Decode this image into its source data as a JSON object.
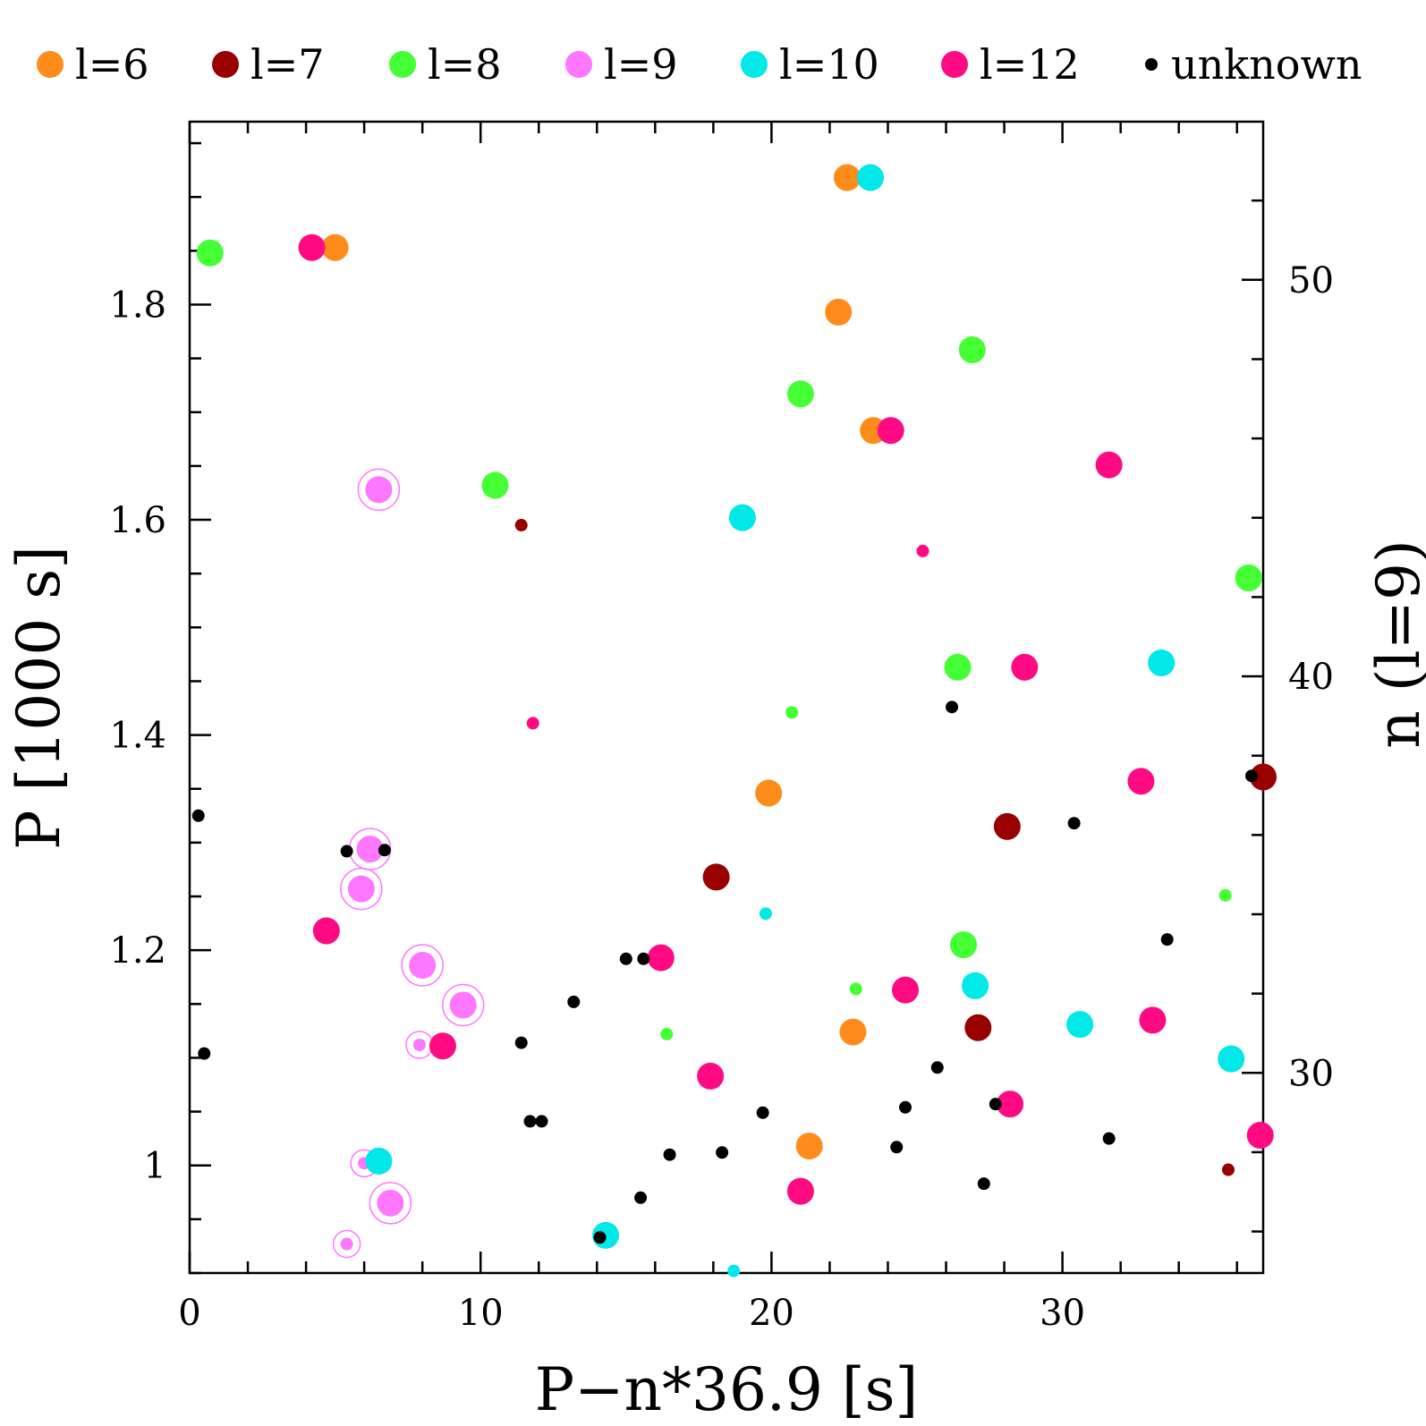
{
  "chart_data": {
    "type": "scatter",
    "title": "",
    "xlabel": "P−n*36.9 [s]",
    "ylabel": "P [1000 s]",
    "y2label": "n (l=9)",
    "xlim": [
      0,
      36.9
    ],
    "ylim": [
      0.9,
      1.97
    ],
    "x_ticks": [
      0,
      10,
      20,
      30
    ],
    "y_ticks": [
      1,
      1.2,
      1.4,
      1.6,
      1.8
    ],
    "y_tick_labels": [
      "1",
      "1.2",
      "1.4",
      "1.6",
      "1.8"
    ],
    "y2_ticks": [
      30,
      40,
      50
    ],
    "grid": false,
    "legend_position": "top",
    "legend": [
      {
        "label": "l=6",
        "color": "#FF8C1A"
      },
      {
        "label": "l=7",
        "color": "#990000"
      },
      {
        "label": "l=8",
        "color": "#44FF33"
      },
      {
        "label": "l=9",
        "color": "#FF77FF"
      },
      {
        "label": "l=10",
        "color": "#00E8E8"
      },
      {
        "label": "l=12",
        "color": "#FF0A82"
      },
      {
        "label": "unknown",
        "color": "#000000"
      }
    ],
    "series": [
      {
        "name": "l=6",
        "color": "#FF8C1A",
        "points": [
          [
            22.6,
            1.918,
            "L"
          ],
          [
            5.0,
            1.853,
            "L"
          ],
          [
            22.3,
            1.793,
            "L"
          ],
          [
            23.5,
            1.683,
            "L"
          ],
          [
            19.9,
            1.346,
            "L"
          ],
          [
            22.8,
            1.124,
            "L"
          ],
          [
            21.3,
            1.018,
            "L"
          ]
        ]
      },
      {
        "name": "l=7",
        "color": "#990000",
        "points": [
          [
            11.4,
            1.595,
            "S"
          ],
          [
            36.9,
            1.361,
            "L"
          ],
          [
            28.1,
            1.315,
            "L"
          ],
          [
            18.1,
            1.268,
            "L"
          ],
          [
            27.1,
            1.128,
            "L"
          ],
          [
            35.7,
            0.996,
            "S"
          ]
        ]
      },
      {
        "name": "l=8",
        "color": "#44FF33",
        "points": [
          [
            0.7,
            1.848,
            "L"
          ],
          [
            26.9,
            1.758,
            "L"
          ],
          [
            21.0,
            1.717,
            "L"
          ],
          [
            10.5,
            1.632,
            "L"
          ],
          [
            36.4,
            1.546,
            "L"
          ],
          [
            26.4,
            1.463,
            "L"
          ],
          [
            20.7,
            1.421,
            "S"
          ],
          [
            35.6,
            1.251,
            "S"
          ],
          [
            26.6,
            1.205,
            "L"
          ],
          [
            22.9,
            1.164,
            "S"
          ],
          [
            16.4,
            1.122,
            "S"
          ]
        ]
      },
      {
        "name": "l=9",
        "color": "#FF77FF",
        "points": [
          [
            6.5,
            1.628,
            "LR"
          ],
          [
            6.2,
            1.294,
            "LR"
          ],
          [
            5.9,
            1.257,
            "LR"
          ],
          [
            8.0,
            1.186,
            "LR"
          ],
          [
            9.4,
            1.149,
            "LR"
          ],
          [
            7.9,
            1.112,
            "SR"
          ],
          [
            6.0,
            1.002,
            "SR"
          ],
          [
            6.9,
            0.965,
            "LR"
          ],
          [
            5.4,
            0.927,
            "SR"
          ]
        ]
      },
      {
        "name": "l=10",
        "color": "#00E8E8",
        "points": [
          [
            23.4,
            1.918,
            "L"
          ],
          [
            19.0,
            1.602,
            "L"
          ],
          [
            33.4,
            1.467,
            "L"
          ],
          [
            19.8,
            1.234,
            "S"
          ],
          [
            27.0,
            1.167,
            "L"
          ],
          [
            30.6,
            1.131,
            "L"
          ],
          [
            35.8,
            1.099,
            "L"
          ],
          [
            6.5,
            1.004,
            "L"
          ],
          [
            14.3,
            0.935,
            "L"
          ],
          [
            18.7,
            0.902,
            "S"
          ]
        ]
      },
      {
        "name": "l=12",
        "color": "#FF0A82",
        "points": [
          [
            4.2,
            1.853,
            "L"
          ],
          [
            24.1,
            1.683,
            "L"
          ],
          [
            31.6,
            1.651,
            "L"
          ],
          [
            25.2,
            1.571,
            "S"
          ],
          [
            11.8,
            1.411,
            "S"
          ],
          [
            28.7,
            1.463,
            "L"
          ],
          [
            32.7,
            1.357,
            "L"
          ],
          [
            4.7,
            1.218,
            "L"
          ],
          [
            16.2,
            1.193,
            "L"
          ],
          [
            24.6,
            1.163,
            "L"
          ],
          [
            33.1,
            1.135,
            "L"
          ],
          [
            8.7,
            1.111,
            "L"
          ],
          [
            17.9,
            1.083,
            "L"
          ],
          [
            28.2,
            1.057,
            "L"
          ],
          [
            36.8,
            1.028,
            "L"
          ],
          [
            21.0,
            0.976,
            "L"
          ]
        ]
      },
      {
        "name": "unknown",
        "color": "#000000",
        "points": [
          [
            0.3,
            1.325,
            "D"
          ],
          [
            5.4,
            1.292,
            "D"
          ],
          [
            6.7,
            1.293,
            "D"
          ],
          [
            0.5,
            1.104,
            "D"
          ],
          [
            15.0,
            1.192,
            "D"
          ],
          [
            15.6,
            1.192,
            "D"
          ],
          [
            13.2,
            1.152,
            "D"
          ],
          [
            11.4,
            1.114,
            "D"
          ],
          [
            11.7,
            1.041,
            "D"
          ],
          [
            12.1,
            1.041,
            "D"
          ],
          [
            16.5,
            1.01,
            "D"
          ],
          [
            18.3,
            1.012,
            "D"
          ],
          [
            15.5,
            0.97,
            "D"
          ],
          [
            14.1,
            0.933,
            "D"
          ],
          [
            19.7,
            1.049,
            "D"
          ],
          [
            26.2,
            1.426,
            "D"
          ],
          [
            30.4,
            1.318,
            "D"
          ],
          [
            36.5,
            1.362,
            "D"
          ],
          [
            33.6,
            1.21,
            "D"
          ],
          [
            25.7,
            1.091,
            "D"
          ],
          [
            24.6,
            1.054,
            "D"
          ],
          [
            27.7,
            1.057,
            "D"
          ],
          [
            24.3,
            1.017,
            "D"
          ],
          [
            27.3,
            0.983,
            "D"
          ],
          [
            31.6,
            1.025,
            "D"
          ]
        ]
      }
    ]
  }
}
